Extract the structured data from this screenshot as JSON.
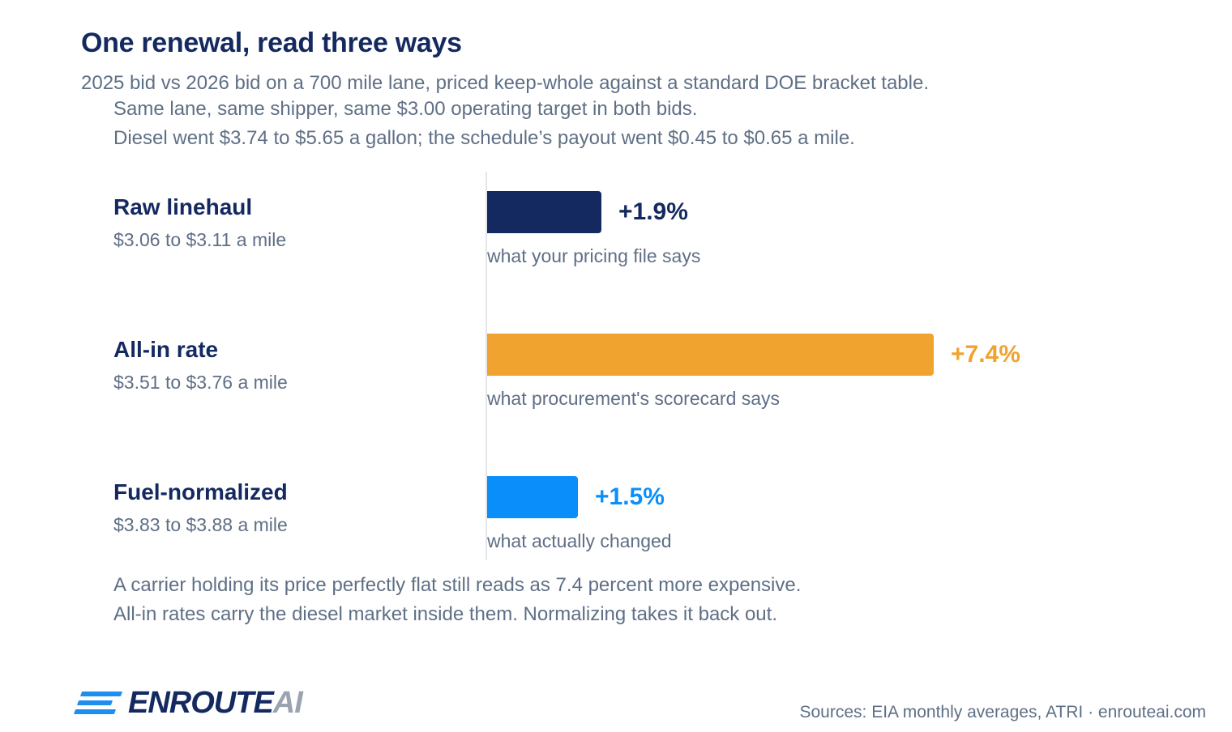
{
  "header": {
    "title": "One renewal, read three ways",
    "subtitle_lines": [
      "2025 bid vs 2026 bid on a 700 mile lane, priced keep-whole against a standard DOE bracket table.",
      "Same lane, same shipper, same $3.00 operating target in both bids.",
      "Diesel went $3.74 to $5.65 a gallon; the schedule’s payout went $0.45 to $0.65 a mile."
    ]
  },
  "chart_data": {
    "type": "bar",
    "orientation": "horizontal",
    "title": "One renewal, read three ways",
    "categories": [
      "Raw linehaul",
      "All-in rate",
      "Fuel-normalized"
    ],
    "values": [
      1.9,
      7.4,
      1.5
    ],
    "value_labels": [
      "+1.9%",
      "+7.4%",
      "+1.5%"
    ],
    "ranges": [
      "$3.06 to $3.11 a mile",
      "$3.51 to $3.76 a mile",
      "$3.83 to $3.88 a mile"
    ],
    "notes": [
      "what your pricing file says",
      "what procurement's scorecard says",
      "what actually changed"
    ],
    "colors": [
      "#13295f",
      "#f0a32f",
      "#0a8ffa"
    ],
    "xlim": [
      0,
      7.4
    ],
    "grid": false,
    "legend": "none"
  },
  "footer": {
    "lines": [
      "A carrier holding its price perfectly flat still reads as 7.4 percent more expensive.",
      "All-in rates carry the diesel market inside them. Normalizing takes it back out."
    ],
    "sources": "Sources: EIA monthly averages, ATRI · enrouteai.com"
  },
  "logo": {
    "part1": "ENROUTE",
    "part2": "AI"
  }
}
